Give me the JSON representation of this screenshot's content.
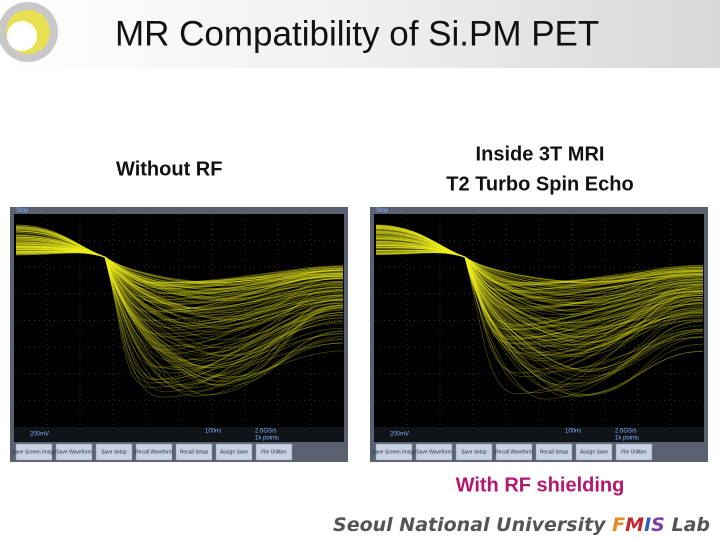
{
  "title": "MR Compatibility of Si.PM PET",
  "panels": [
    {
      "caption": [
        "Without RF"
      ],
      "scope": {
        "state": "Stop",
        "volts": "200mV",
        "time": "100ns",
        "rate": "2.5GS/s",
        "points": "1k points",
        "buttons": [
          "Save Screen Image",
          "Save Waveform",
          "Save Setup",
          "Recall Waveform",
          "Recall Setup",
          "Assign Save",
          "File Utilities"
        ]
      }
    },
    {
      "caption": [
        "Inside 3T MRI",
        "T2 Turbo Spin Echo"
      ],
      "scope": {
        "state": "Stop",
        "volts": "200mV",
        "time": "100ns",
        "rate": "2.5GS/s",
        "points": "1k points",
        "buttons": [
          "Save Screen Image",
          "Save Waveform",
          "Save Setup",
          "Recall Waveform",
          "Recall Setup",
          "Assign Save",
          "File Utilities"
        ]
      }
    }
  ],
  "note": "With RF shielding",
  "footer": {
    "parts": [
      "Seoul National University ",
      "F",
      "M",
      "I",
      "S",
      " Lab"
    ]
  }
}
